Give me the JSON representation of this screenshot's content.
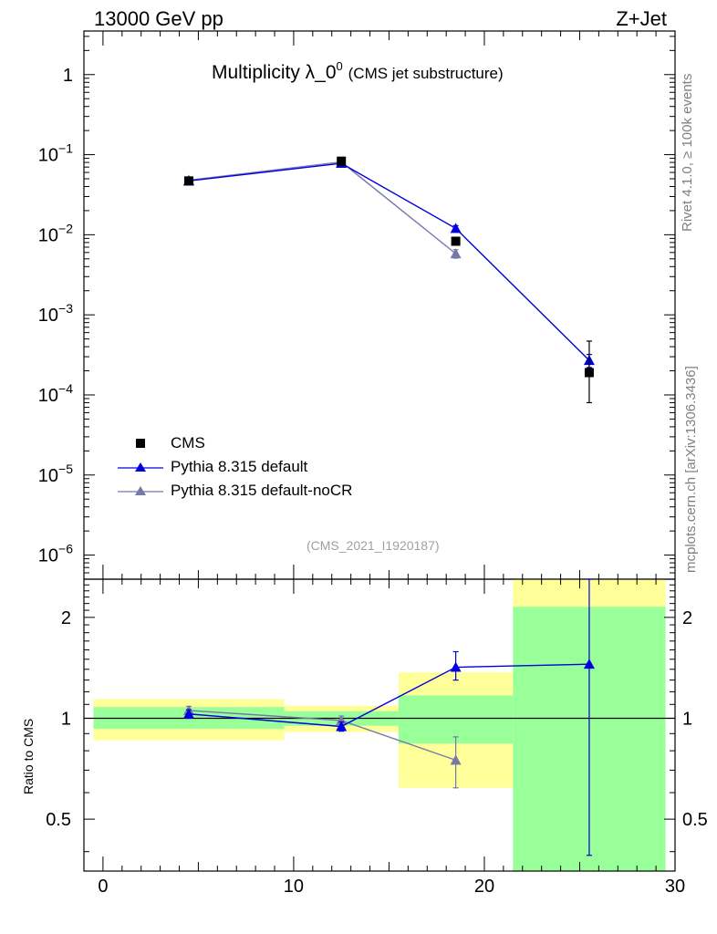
{
  "header": {
    "process": "13000 GeV pp",
    "channel": "Z+Jet"
  },
  "side_labels": {
    "rivet": "Rivet 4.1.0, ≥ 100k events",
    "mcplots": "mcplots.cern.ch [arXiv:1306.3436]"
  },
  "colors": {
    "data": "#000000",
    "default": "#0000dd",
    "nocr": "#7777aa",
    "band_inner": "#99ff99",
    "band_outer": "#ffff99"
  },
  "chart_data": [
    {
      "type": "line",
      "panel": "main",
      "title": "Multiplicity λ_0",
      "title_sup": "0",
      "subtitle": "(CMS jet substructure)",
      "watermark": "(CMS_2021_I1920187)",
      "yscale": "log",
      "ylim": [
        5e-07,
        3.5
      ],
      "xlim": [
        -1,
        30
      ],
      "y_ticks": [
        {
          "value": 1,
          "label": "1",
          "exp": ""
        },
        {
          "value": 0.1,
          "label": "10",
          "exp": "−1"
        },
        {
          "value": 0.01,
          "label": "10",
          "exp": "−2"
        },
        {
          "value": 0.001,
          "label": "10",
          "exp": "−3"
        },
        {
          "value": 0.0001,
          "label": "10",
          "exp": "−4"
        },
        {
          "value": 1e-05,
          "label": "10",
          "exp": "−5"
        },
        {
          "value": 1e-06,
          "label": "10",
          "exp": "−6"
        }
      ],
      "legend_position": "bottom-left",
      "series": [
        {
          "name": "CMS",
          "style": "square",
          "x": [
            4.5,
            12.5,
            18.5,
            25.5
          ],
          "y": [
            0.047,
            0.083,
            0.0083,
            0.00019
          ],
          "yerr_low": [
            0.002,
            0.003,
            0.0008,
            0.00011
          ],
          "yerr_high": [
            0.002,
            0.003,
            0.0008,
            0.00028
          ]
        },
        {
          "name": "Pythia 8.315 default",
          "style": "triangle",
          "x": [
            4.5,
            12.5,
            18.5,
            25.5
          ],
          "y": [
            0.047,
            0.078,
            0.012,
            0.00027
          ],
          "yerr_low": [
            0.001,
            0.002,
            0.001,
            5e-05
          ],
          "yerr_high": [
            0.001,
            0.002,
            0.001,
            5e-05
          ]
        },
        {
          "name": "Pythia 8.315 default-noCR",
          "style": "triangle",
          "x": [
            4.5,
            12.5,
            18.5
          ],
          "y": [
            0.048,
            0.081,
            0.0058
          ],
          "yerr_low": [
            0.001,
            0.002,
            0.0007
          ],
          "yerr_high": [
            0.001,
            0.002,
            0.0007
          ]
        }
      ]
    },
    {
      "type": "line",
      "panel": "ratio",
      "ylabel": "Ratio to CMS",
      "yscale": "log",
      "ylim": [
        0.35,
        2.6
      ],
      "xlim": [
        -1,
        30
      ],
      "x_ticks": [
        0,
        10,
        20,
        30
      ],
      "y_ticks": [
        0.5,
        1,
        2
      ],
      "reference": 1,
      "bands": [
        {
          "x0": -0.5,
          "x1": 9.5,
          "inner": [
            0.93,
            1.08
          ],
          "outer": [
            0.86,
            1.14
          ]
        },
        {
          "x0": 9.5,
          "x1": 15.5,
          "inner": [
            0.95,
            1.05
          ],
          "outer": [
            0.91,
            1.09
          ]
        },
        {
          "x0": 15.5,
          "x1": 21.5,
          "inner": [
            0.84,
            1.17
          ],
          "outer": [
            0.62,
            1.37
          ]
        },
        {
          "x0": 21.5,
          "x1": 29.5,
          "inner": [
            0.35,
            2.15
          ],
          "outer": [
            0.35,
            2.6
          ]
        }
      ],
      "series": [
        {
          "name": "Pythia 8.315 default",
          "x": [
            4.5,
            12.5,
            18.5,
            25.5
          ],
          "y": [
            1.03,
            0.945,
            1.42,
            1.45
          ],
          "yerr_low": [
            0.03,
            0.03,
            0.12,
            1.06
          ],
          "yerr_high": [
            0.03,
            0.03,
            0.16,
            1.2
          ]
        },
        {
          "name": "Pythia 8.315 default-noCR",
          "x": [
            4.5,
            12.5,
            18.5
          ],
          "y": [
            1.055,
            0.985,
            0.75
          ],
          "yerr_low": [
            0.03,
            0.03,
            0.13
          ],
          "yerr_high": [
            0.03,
            0.03,
            0.13
          ]
        }
      ]
    }
  ]
}
